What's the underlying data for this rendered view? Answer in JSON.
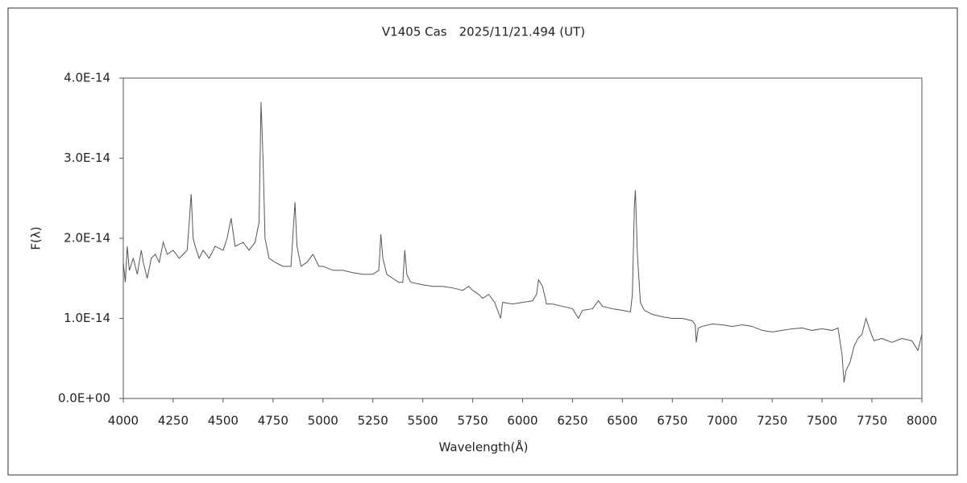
{
  "chart_data": {
    "type": "line",
    "title": "V1405 Cas　2025/11/21.494 (UT)",
    "x_label": "Wavelength(Å)",
    "y_label": "F(λ)",
    "x": [
      4000,
      4010,
      4020,
      4030,
      4050,
      4070,
      4090,
      4100,
      4120,
      4140,
      4160,
      4180,
      4200,
      4220,
      4250,
      4280,
      4300,
      4320,
      4340,
      4350,
      4360,
      4380,
      4400,
      4430,
      4460,
      4500,
      4520,
      4540,
      4560,
      4600,
      4630,
      4660,
      4680,
      4690,
      4700,
      4710,
      4730,
      4760,
      4800,
      4840,
      4860,
      4870,
      4890,
      4920,
      4950,
      4980,
      5000,
      5050,
      5100,
      5150,
      5200,
      5250,
      5280,
      5290,
      5300,
      5320,
      5350,
      5380,
      5400,
      5410,
      5420,
      5440,
      5500,
      5550,
      5600,
      5650,
      5700,
      5730,
      5750,
      5780,
      5800,
      5830,
      5860,
      5890,
      5900,
      5950,
      6000,
      6050,
      6070,
      6080,
      6100,
      6120,
      6150,
      6200,
      6250,
      6280,
      6300,
      6350,
      6380,
      6400,
      6450,
      6500,
      6540,
      6550,
      6560,
      6565,
      6575,
      6590,
      6610,
      6650,
      6700,
      6750,
      6800,
      6850,
      6865,
      6870,
      6880,
      6900,
      6950,
      7000,
      7050,
      7100,
      7150,
      7200,
      7250,
      7300,
      7350,
      7400,
      7450,
      7500,
      7550,
      7580,
      7600,
      7610,
      7620,
      7640,
      7660,
      7680,
      7700,
      7720,
      7740,
      7760,
      7800,
      7850,
      7900,
      7950,
      7980,
      8000
    ],
    "series": [
      {
        "color": "#555555",
        "values": [
          1.7e-14,
          1.45e-14,
          1.9e-14,
          1.6e-14,
          1.75e-14,
          1.55e-14,
          1.85e-14,
          1.7e-14,
          1.5e-14,
          1.75e-14,
          1.8e-14,
          1.7e-14,
          1.95e-14,
          1.8e-14,
          1.85e-14,
          1.75e-14,
          1.8e-14,
          1.85e-14,
          2.55e-14,
          2e-14,
          1.9e-14,
          1.75e-14,
          1.85e-14,
          1.75e-14,
          1.9e-14,
          1.85e-14,
          2e-14,
          2.25e-14,
          1.9e-14,
          1.95e-14,
          1.85e-14,
          1.95e-14,
          2.2e-14,
          3.7e-14,
          3e-14,
          2e-14,
          1.75e-14,
          1.7e-14,
          1.65e-14,
          1.65e-14,
          2.45e-14,
          1.9e-14,
          1.65e-14,
          1.7e-14,
          1.8e-14,
          1.65e-14,
          1.65e-14,
          1.6e-14,
          1.6e-14,
          1.57e-14,
          1.55e-14,
          1.55e-14,
          1.6e-14,
          2.05e-14,
          1.75e-14,
          1.55e-14,
          1.5e-14,
          1.45e-14,
          1.45e-14,
          1.85e-14,
          1.55e-14,
          1.45e-14,
          1.42e-14,
          1.4e-14,
          1.4e-14,
          1.38e-14,
          1.35e-14,
          1.4e-14,
          1.35e-14,
          1.3e-14,
          1.25e-14,
          1.3e-14,
          1.2e-14,
          1e-14,
          1.2e-14,
          1.18e-14,
          1.2e-14,
          1.22e-14,
          1.3e-14,
          1.48e-14,
          1.4e-14,
          1.18e-14,
          1.18e-14,
          1.15e-14,
          1.12e-14,
          1e-14,
          1.1e-14,
          1.12e-14,
          1.22e-14,
          1.15e-14,
          1.12e-14,
          1.1e-14,
          1.08e-14,
          1.3e-14,
          2.4e-14,
          2.6e-14,
          1.8e-14,
          1.2e-14,
          1.1e-14,
          1.05e-14,
          1.02e-14,
          1e-14,
          1e-14,
          9.7e-15,
          9.2e-15,
          7e-15,
          8.8e-15,
          9e-15,
          9.3e-15,
          9.2e-15,
          9e-15,
          9.2e-15,
          9e-15,
          8.5e-15,
          8.3e-15,
          8.5e-15,
          8.7e-15,
          8.8e-15,
          8.5e-15,
          8.7e-15,
          8.5e-15,
          8.8e-15,
          5.5e-15,
          2e-15,
          3.5e-15,
          4.5e-15,
          6.5e-15,
          7.5e-15,
          8e-15,
          1e-14,
          8.5e-15,
          7.2e-15,
          7.5e-15,
          7e-15,
          7.5e-15,
          7.2e-15,
          6e-15,
          8e-15
        ]
      }
    ],
    "xlim": [
      4000,
      8000
    ],
    "xticks": [
      4000,
      4250,
      4500,
      4750,
      5000,
      5250,
      5500,
      5750,
      6000,
      6250,
      6500,
      6750,
      7000,
      7250,
      7500,
      7750,
      8000
    ],
    "ylim": [
      0,
      4e-14
    ],
    "yticks": [
      {
        "value": 0,
        "label": "0.0E+00"
      },
      {
        "value": 1e-14,
        "label": "1.0E-14"
      },
      {
        "value": 2e-14,
        "label": "2.0E-14"
      },
      {
        "value": 3e-14,
        "label": "3.0E-14"
      },
      {
        "value": 4e-14,
        "label": "4.0E-14"
      }
    ]
  }
}
